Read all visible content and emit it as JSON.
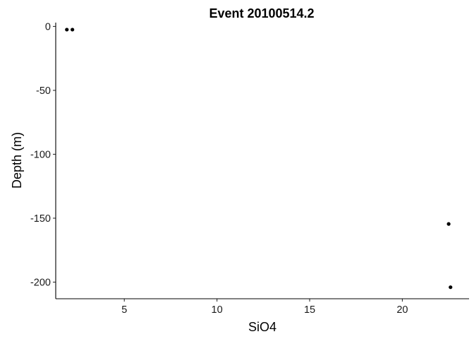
{
  "chart_data": {
    "type": "scatter",
    "title": "Event 20100514.2",
    "xlabel": "SiO4",
    "ylabel": "Depth (m)",
    "xlim": [
      1.3,
      23.6
    ],
    "ylim": [
      -213,
      3
    ],
    "xticks": [
      5,
      10,
      15,
      20
    ],
    "yticks": [
      0,
      -50,
      -100,
      -150,
      -200
    ],
    "grid": false,
    "points": [
      {
        "x": 1.9,
        "y": -2.5
      },
      {
        "x": 2.2,
        "y": -2.5
      },
      {
        "x": 22.5,
        "y": -154.5
      },
      {
        "x": 22.6,
        "y": -204
      }
    ]
  }
}
